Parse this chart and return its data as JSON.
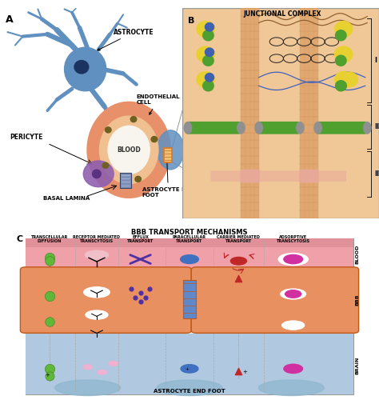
{
  "fig_width": 4.74,
  "fig_height": 5.05,
  "dpi": 100,
  "bg_color": "#ffffff",
  "panel_a_label": "A",
  "panel_b_label": "B",
  "panel_c_label": "C",
  "title_b": "JUNCTIONAL COMPLEX",
  "title_c": "BBB TRANSPORT MECHANISMS",
  "label_i": "I",
  "label_ii": "II",
  "label_iii": "III",
  "blood_label": "BLOOD",
  "bbb_label": "BBB",
  "brain_label": "BRAIN",
  "astrocyte_label": "ASTROCYTE",
  "endothelial_label": "ENDOTHELIAL\nCELL",
  "pericyte_label": "PERICYTE",
  "blood_vessel_label": "BLOOD",
  "astrocyte_end_foot_label_a": "ASTROCYTE END\nFOOT",
  "basal_lamina_label": "BASAL LAMINA",
  "astrocyte_end_foot_label_c": "ASTROCYTE END FOOT",
  "transport_labels": [
    "TRANSCELLULAR\nDIFFUSION",
    "RECEPTOR MEDIATED\nTRANSCYTOSIS",
    "EFFLUX\nTRANSPORT",
    "PARACELLULAR\nTRANSPORT",
    "CARRIER MEDIATED\nTRANSPORT",
    "ADSORPTIVE\nTRANSCYTOSIS"
  ],
  "cell_body_color": "#6090c0",
  "nucleus_color": "#1a3360",
  "vessel_outer_color": "#e8906a",
  "vessel_wall_color": "#f0c090",
  "vessel_lumen_color": "#f8f5ee",
  "pericyte_color": "#9060b0",
  "astrocyte_end_color": "#6090c0",
  "box_bg_color": "#f0c898",
  "membrane_color": "#e0a870",
  "membrane_stripe": "#c88848",
  "green_bar_color": "#50a030",
  "pink_bar_color": "#e8a898",
  "yellow_color": "#e8d030",
  "green_sphere_color": "#50a030",
  "blue_sphere_color": "#4060b0",
  "green_dot_color": "#60b838",
  "blue_dot_color": "#5080c0",
  "magenta_dot_color": "#d030a0",
  "orange_color": "#e07820",
  "blood_layer_color": "#f0a0a8",
  "bbb_cell_color": "#e89060",
  "brain_layer_color": "#b0c8e0",
  "dark_orange": "#c05818",
  "gray_cap_color": "#909090",
  "pink_vesicle_color": "#f0c0c8",
  "brown_line_color": "#906030"
}
